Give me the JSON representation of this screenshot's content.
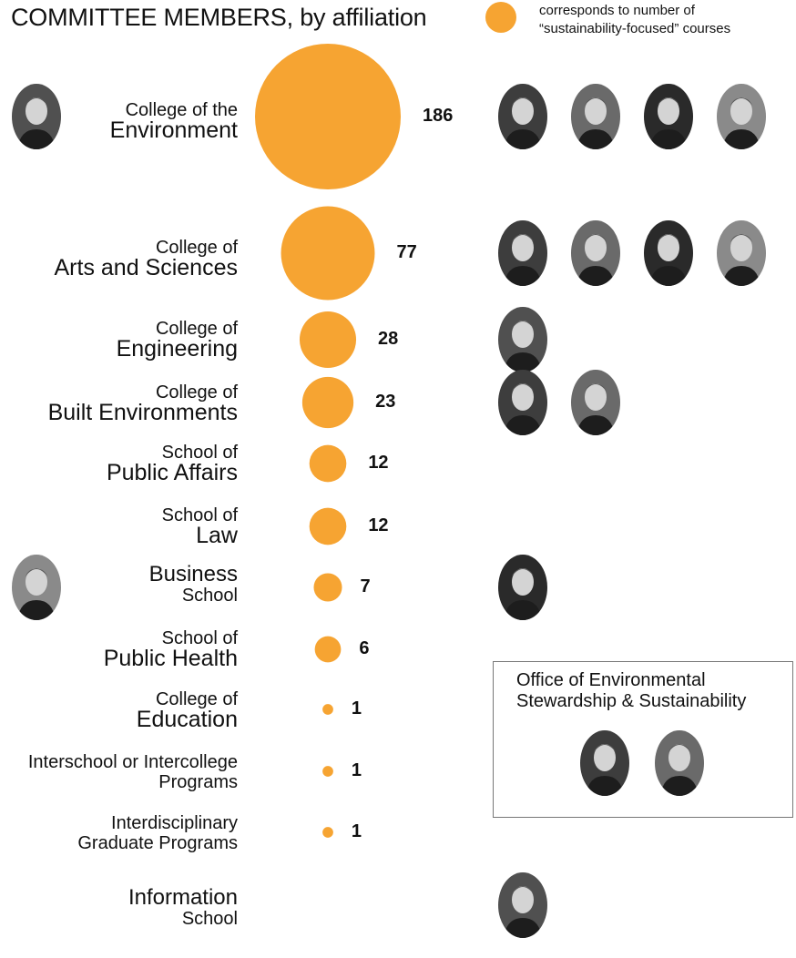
{
  "title": "COMMITTEE MEMBERS, by affiliation",
  "legend": {
    "text_line1": "corresponds to number of",
    "text_line2": "“sustainability-focused” courses",
    "color": "#f6a432"
  },
  "office": {
    "line1": "Office of Environmental",
    "line2": "Stewardship & Sustainability"
  },
  "photo_tones": [
    "#3d3d3d",
    "#6a6a6a",
    "#2a2a2a",
    "#8a8a8a",
    "#505050"
  ],
  "chart_data": {
    "type": "bubble",
    "title": "COMMITTEE MEMBERS, by affiliation",
    "size_encodes": "number of “sustainability-focused” courses",
    "bubble_color": "#f6a432",
    "categories": [
      {
        "line1": "College of the",
        "line2": "Environment",
        "value": 186,
        "members": 4,
        "extra_left_member": true
      },
      {
        "line1": "College of",
        "line2": "Arts and Sciences",
        "value": 77,
        "members": 4,
        "extra_left_member": false
      },
      {
        "line1": "College of",
        "line2": "Engineering",
        "value": 28,
        "members": 1,
        "extra_left_member": false
      },
      {
        "line1": "College of",
        "line2": "Built Environments",
        "value": 23,
        "members": 2,
        "extra_left_member": false
      },
      {
        "line1": "School of",
        "line2": "Public Affairs",
        "value": 12,
        "members": 0,
        "extra_left_member": false
      },
      {
        "line1": "School of",
        "line2": "Law",
        "value": 12,
        "members": 0,
        "extra_left_member": false
      },
      {
        "line1": "Business",
        "line2": "School",
        "value": 7,
        "members": 1,
        "extra_left_member": true
      },
      {
        "line1": "School of",
        "line2": "Public Health",
        "value": 6,
        "members": 0,
        "extra_left_member": false
      },
      {
        "line1": "College of",
        "line2": "Education",
        "value": 1,
        "members": 0,
        "extra_left_member": false
      },
      {
        "line1": "Interschool or Intercollege",
        "line2": "Programs",
        "value": 1,
        "members": 0,
        "extra_left_member": false
      },
      {
        "line1": "Interdisciplinary",
        "line2": "Graduate Programs",
        "value": 1,
        "members": 0,
        "extra_left_member": false
      },
      {
        "line1": "Information",
        "line2": "School",
        "value": null,
        "members": 1,
        "extra_left_member": false
      }
    ],
    "office_members": 2
  }
}
